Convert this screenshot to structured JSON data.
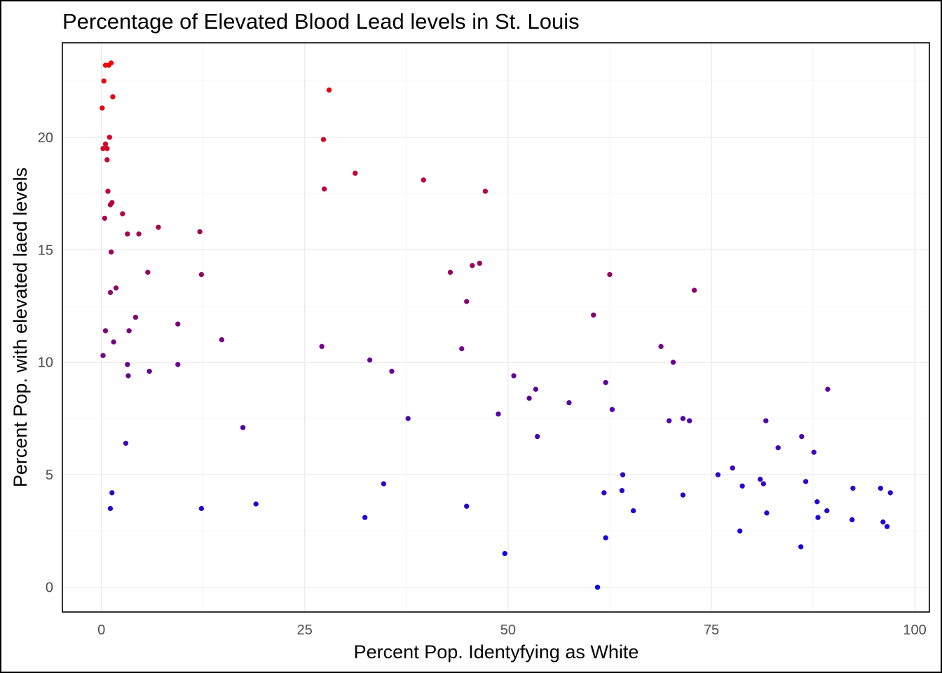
{
  "chart_data": {
    "type": "scatter",
    "title": "Percentage of Elevated Blood Lead levels in St. Louis",
    "xlabel": "Percent Pop. Identyfying as White",
    "ylabel": "Percent Pop. with elevated laed levels",
    "xlim": [
      -4.8,
      101.8
    ],
    "ylim": [
      -1.1,
      24.2
    ],
    "x_ticks": [
      0,
      25,
      50,
      75,
      100
    ],
    "y_ticks": [
      0,
      5,
      10,
      15,
      20
    ],
    "x_tick_labels": [
      "0",
      "25",
      "50",
      "75",
      "100"
    ],
    "y_tick_labels": [
      "0",
      "5",
      "10",
      "15",
      "20"
    ],
    "grid": true,
    "color_scale": {
      "low": "#0000ff",
      "high": "#ff0000",
      "variable": "y"
    },
    "points": [
      {
        "x": 0.1,
        "y": 21.3
      },
      {
        "x": 0.2,
        "y": 19.5
      },
      {
        "x": 0.2,
        "y": 10.3
      },
      {
        "x": 0.3,
        "y": 22.5
      },
      {
        "x": 0.4,
        "y": 16.4
      },
      {
        "x": 0.5,
        "y": 19.7
      },
      {
        "x": 0.5,
        "y": 11.4
      },
      {
        "x": 0.5,
        "y": 23.2
      },
      {
        "x": 0.7,
        "y": 19.0
      },
      {
        "x": 0.7,
        "y": 19.5
      },
      {
        "x": 0.8,
        "y": 17.6
      },
      {
        "x": 0.9,
        "y": 23.2
      },
      {
        "x": 1.0,
        "y": 20.0
      },
      {
        "x": 1.1,
        "y": 17.0
      },
      {
        "x": 1.1,
        "y": 13.1
      },
      {
        "x": 1.1,
        "y": 3.5
      },
      {
        "x": 1.2,
        "y": 23.3
      },
      {
        "x": 1.2,
        "y": 14.9
      },
      {
        "x": 1.3,
        "y": 17.1
      },
      {
        "x": 1.3,
        "y": 4.2
      },
      {
        "x": 1.4,
        "y": 21.8
      },
      {
        "x": 1.5,
        "y": 10.9
      },
      {
        "x": 1.8,
        "y": 13.3
      },
      {
        "x": 2.6,
        "y": 16.6
      },
      {
        "x": 3.0,
        "y": 6.4
      },
      {
        "x": 3.2,
        "y": 15.7
      },
      {
        "x": 3.2,
        "y": 9.9
      },
      {
        "x": 3.3,
        "y": 9.4
      },
      {
        "x": 3.4,
        "y": 11.4
      },
      {
        "x": 4.2,
        "y": 12.0
      },
      {
        "x": 4.6,
        "y": 15.7
      },
      {
        "x": 5.7,
        "y": 14.0
      },
      {
        "x": 5.9,
        "y": 9.6
      },
      {
        "x": 7.0,
        "y": 16.0
      },
      {
        "x": 9.4,
        "y": 11.7
      },
      {
        "x": 9.4,
        "y": 9.9
      },
      {
        "x": 12.1,
        "y": 15.8
      },
      {
        "x": 12.3,
        "y": 13.9
      },
      {
        "x": 12.3,
        "y": 3.5
      },
      {
        "x": 14.8,
        "y": 11.0
      },
      {
        "x": 17.4,
        "y": 7.1
      },
      {
        "x": 19.0,
        "y": 3.7
      },
      {
        "x": 27.1,
        "y": 10.7
      },
      {
        "x": 27.3,
        "y": 19.9
      },
      {
        "x": 27.4,
        "y": 17.7
      },
      {
        "x": 28.0,
        "y": 22.1
      },
      {
        "x": 31.2,
        "y": 18.4
      },
      {
        "x": 32.4,
        "y": 3.1
      },
      {
        "x": 33.0,
        "y": 10.1
      },
      {
        "x": 34.7,
        "y": 4.6
      },
      {
        "x": 35.7,
        "y": 9.6
      },
      {
        "x": 37.7,
        "y": 7.5
      },
      {
        "x": 39.6,
        "y": 18.1
      },
      {
        "x": 42.9,
        "y": 14.0
      },
      {
        "x": 44.3,
        "y": 10.6
      },
      {
        "x": 44.9,
        "y": 12.7
      },
      {
        "x": 44.9,
        "y": 3.6
      },
      {
        "x": 45.6,
        "y": 14.3
      },
      {
        "x": 46.5,
        "y": 14.4
      },
      {
        "x": 47.2,
        "y": 17.6
      },
      {
        "x": 48.8,
        "y": 7.7
      },
      {
        "x": 49.6,
        "y": 1.5
      },
      {
        "x": 50.7,
        "y": 9.4
      },
      {
        "x": 52.6,
        "y": 8.4
      },
      {
        "x": 53.4,
        "y": 8.8
      },
      {
        "x": 53.6,
        "y": 6.7
      },
      {
        "x": 57.5,
        "y": 8.2
      },
      {
        "x": 60.5,
        "y": 12.1
      },
      {
        "x": 61.0,
        "y": 0.0
      },
      {
        "x": 61.8,
        "y": 4.2
      },
      {
        "x": 62.0,
        "y": 9.1
      },
      {
        "x": 62.0,
        "y": 2.2
      },
      {
        "x": 62.5,
        "y": 13.9
      },
      {
        "x": 62.8,
        "y": 7.9
      },
      {
        "x": 64.1,
        "y": 5.0
      },
      {
        "x": 64.0,
        "y": 4.3
      },
      {
        "x": 65.4,
        "y": 3.4
      },
      {
        "x": 68.8,
        "y": 10.7
      },
      {
        "x": 69.8,
        "y": 7.4
      },
      {
        "x": 70.3,
        "y": 10.0
      },
      {
        "x": 71.5,
        "y": 7.5
      },
      {
        "x": 71.5,
        "y": 4.1
      },
      {
        "x": 72.3,
        "y": 7.4
      },
      {
        "x": 72.9,
        "y": 13.2
      },
      {
        "x": 75.8,
        "y": 5.0
      },
      {
        "x": 77.6,
        "y": 5.3
      },
      {
        "x": 78.5,
        "y": 2.5
      },
      {
        "x": 78.8,
        "y": 4.5
      },
      {
        "x": 81.0,
        "y": 4.8
      },
      {
        "x": 81.4,
        "y": 4.6
      },
      {
        "x": 81.7,
        "y": 7.4
      },
      {
        "x": 81.8,
        "y": 3.3
      },
      {
        "x": 83.2,
        "y": 6.2
      },
      {
        "x": 86.1,
        "y": 6.7
      },
      {
        "x": 86.0,
        "y": 1.8
      },
      {
        "x": 86.6,
        "y": 4.7
      },
      {
        "x": 87.6,
        "y": 6.0
      },
      {
        "x": 88.0,
        "y": 3.8
      },
      {
        "x": 88.1,
        "y": 3.1
      },
      {
        "x": 89.2,
        "y": 3.4
      },
      {
        "x": 89.3,
        "y": 8.8
      },
      {
        "x": 92.4,
        "y": 4.4
      },
      {
        "x": 92.3,
        "y": 3.0
      },
      {
        "x": 95.8,
        "y": 4.4
      },
      {
        "x": 96.1,
        "y": 2.9
      },
      {
        "x": 96.6,
        "y": 2.7
      },
      {
        "x": 97.0,
        "y": 4.2
      }
    ]
  }
}
